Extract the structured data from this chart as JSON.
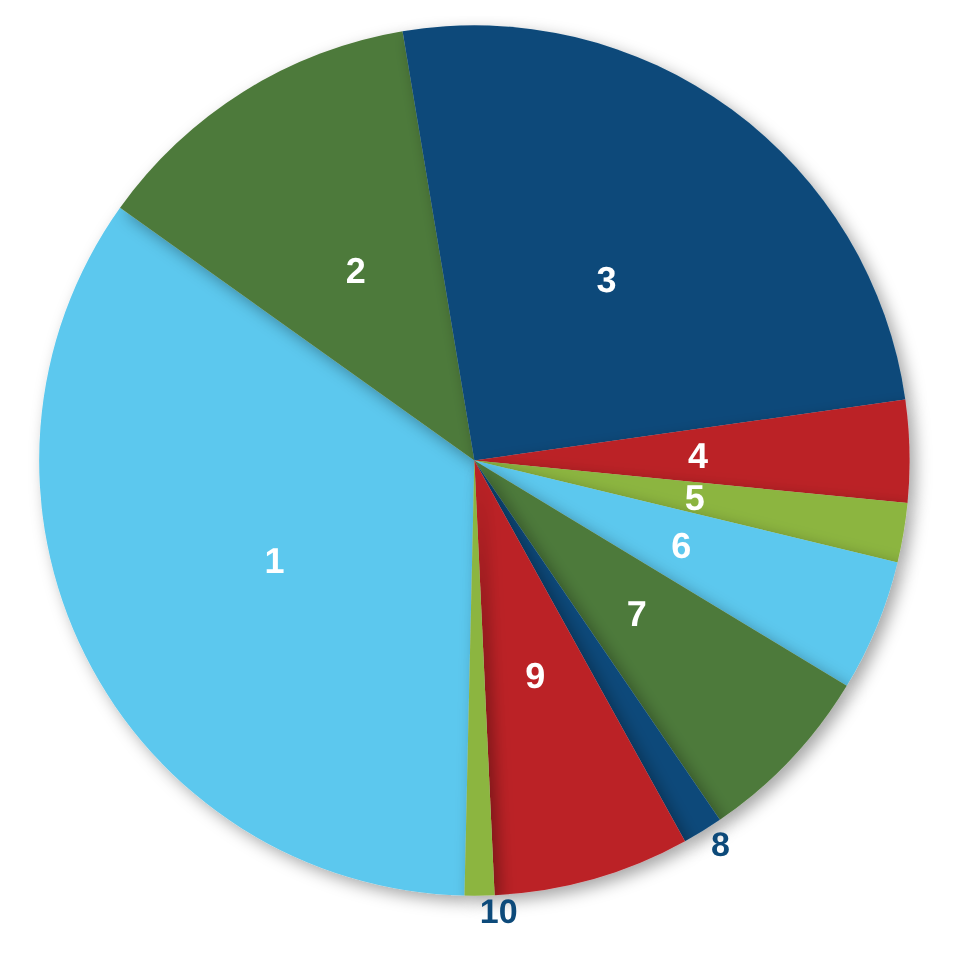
{
  "chart_data": {
    "type": "pie",
    "categories": [
      "1",
      "2",
      "3",
      "4",
      "5",
      "6",
      "7",
      "8",
      "9",
      "10"
    ],
    "values": [
      34.5,
      12.5,
      25.4,
      3.8,
      2.2,
      4.9,
      6.8,
      1.5,
      7.3,
      1.1
    ],
    "colors": [
      "#5bc8ee",
      "#4e7a3a",
      "#0d4a7a",
      "#bb2228",
      "#8cb540",
      "#5bc8ee",
      "#4e7a3a",
      "#0d4a7a",
      "#bb2228",
      "#8cb540"
    ]
  }
}
